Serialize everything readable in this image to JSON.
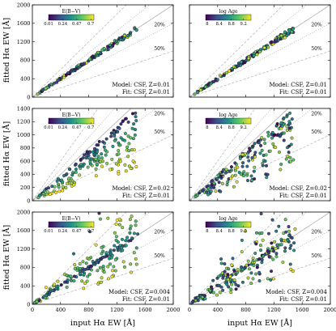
{
  "figure": {
    "ylabel": "fitted Hα EW [Å]",
    "xlabel": "input Hα EW [Å]",
    "colorbars": {
      "ebv": {
        "label": "E(B−V)",
        "ticks": [
          "0.01",
          "0.24",
          "0.47",
          "0.7"
        ],
        "vmin": 0.01,
        "vmax": 0.75
      },
      "age": {
        "label": "log Age",
        "ticks": [
          "8",
          "8.4",
          "8.8",
          "9.2"
        ],
        "vmin": 7.95,
        "vmax": 9.45
      }
    },
    "colormap": [
      "#440154",
      "#3b528b",
      "#21918c",
      "#5ec962",
      "#fde725"
    ],
    "reference_lines": {
      "labels": [
        "20%",
        "50%"
      ],
      "fractions": [
        0.2,
        0.5
      ],
      "line_color": "#b0b0b0"
    }
  },
  "chart_data": [
    {
      "type": "scatter",
      "panel": 1,
      "color_by": "ebv",
      "model_label": "Model: CSF, Z=0.01",
      "fit_label": "Fit: CSF, Z=0.01",
      "xlim": [
        0,
        2000
      ],
      "ylim": [
        0,
        2000
      ],
      "xticks": [
        "0",
        "400",
        "800",
        "1200",
        "1600",
        "2000"
      ],
      "yticks": [
        "0",
        "400",
        "800",
        "1200",
        "1600",
        "2000"
      ],
      "scatter_mode": "tight",
      "x_range": [
        60,
        1480
      ],
      "n_points": 150
    },
    {
      "type": "scatter",
      "panel": 2,
      "color_by": "age",
      "model_label": "Model: CSF, Z=0.01",
      "fit_label": "Fit: CSF, Z=0.01",
      "xlim": [
        0,
        2000
      ],
      "ylim": [
        0,
        2000
      ],
      "xticks": [
        "0",
        "400",
        "800",
        "1200",
        "1600",
        "2000"
      ],
      "yticks": [
        "0",
        "400",
        "800",
        "1200",
        "1600",
        "2000"
      ],
      "scatter_mode": "tight",
      "x_range": [
        60,
        1480
      ],
      "n_points": 150
    },
    {
      "type": "scatter",
      "panel": 3,
      "color_by": "ebv",
      "model_label": "Model: CSF, Z=0.02",
      "fit_label": "Fit: CSF, Z=0.01",
      "xlim": [
        0,
        2000
      ],
      "ylim": [
        0,
        1400
      ],
      "xticks": [
        "0",
        "400",
        "800",
        "1200",
        "1600",
        "2000"
      ],
      "yticks": [
        "0",
        "200",
        "400",
        "600",
        "800",
        "1000",
        "1200",
        "1400"
      ],
      "scatter_mode": "under",
      "x_range": [
        80,
        1480
      ],
      "n_points": 190
    },
    {
      "type": "scatter",
      "panel": 4,
      "color_by": "age",
      "model_label": "Model: CSF, Z=0.02",
      "fit_label": "Fit: CSF, Z=0.01",
      "xlim": [
        0,
        2000
      ],
      "ylim": [
        0,
        1400
      ],
      "xticks": [
        "0",
        "400",
        "800",
        "1200",
        "1600",
        "2000"
      ],
      "yticks": [
        "0",
        "200",
        "400",
        "600",
        "800",
        "1000",
        "1200",
        "1400"
      ],
      "scatter_mode": "under",
      "x_range": [
        80,
        1480
      ],
      "n_points": 190
    },
    {
      "type": "scatter",
      "panel": 5,
      "color_by": "ebv",
      "model_label": "Model: CSF, Z=0.004",
      "fit_label": "Fit: CSF, Z=0.01",
      "xlim": [
        0,
        2000
      ],
      "ylim": [
        0,
        2000
      ],
      "xticks": [
        "0",
        "400",
        "800",
        "1200",
        "1600",
        "2000"
      ],
      "yticks": [
        "0",
        "400",
        "800",
        "1200",
        "1600",
        "2000"
      ],
      "scatter_mode": "over",
      "x_range": [
        30,
        1500
      ],
      "n_points": 210
    },
    {
      "type": "scatter",
      "panel": 6,
      "color_by": "age",
      "model_label": "Model: CSF, Z=0.004",
      "fit_label": "Fit: CSF, Z=0.01",
      "xlim": [
        0,
        2000
      ],
      "ylim": [
        0,
        2000
      ],
      "xticks": [
        "0",
        "400",
        "800",
        "1200",
        "1600",
        "2000"
      ],
      "yticks": [
        "0",
        "400",
        "800",
        "1200",
        "1600",
        "2000"
      ],
      "scatter_mode": "over",
      "x_range": [
        30,
        1500
      ],
      "n_points": 210
    }
  ]
}
